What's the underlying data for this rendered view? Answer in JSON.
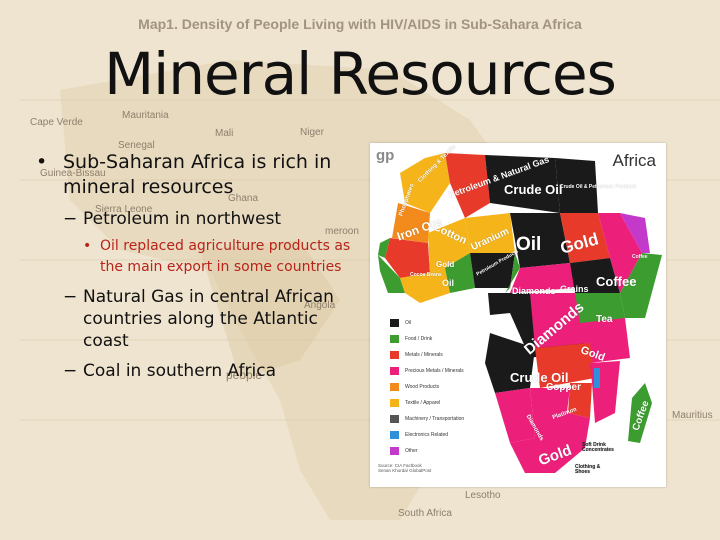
{
  "background": {
    "title": "Map1. Density of People Living with HIV/AIDS in Sub-Sahara Africa",
    "labels": {
      "cape_verde": "Cape Verde",
      "mauritania": "Mauritania",
      "mali": "Mali",
      "niger": "Niger",
      "senegal": "Senegal",
      "guinea_bissau": "Guinea-Bissau",
      "sierra_leone": "Sierra Leone",
      "ghana": "Ghana",
      "cameroon": "meroon",
      "angola": "Angola",
      "people": "people",
      "mauritius": "Mauritius",
      "lesotho": "Lesotho",
      "south_africa": "South Africa"
    }
  },
  "slide": {
    "title": "Mineral Resources",
    "bullet_1": "Sub-Saharan Africa is rich in mineral resources",
    "sub_1": "Petroleum in northwest",
    "subsub_1": "Oil replaced agriculture products as the main export in some countries",
    "sub_2": "Natural Gas in central African countries along the Atlantic coast",
    "sub_3": "Coal in southern Africa"
  },
  "map": {
    "logo": "gp",
    "title": "Africa",
    "regions": {
      "clothing_textile": "Clothing & Textile",
      "petroleum_gas": "Petroleum & Natural Gas",
      "crude_oil_north": "Crude Oil",
      "crude_oil_petroleum": "Crude Oil & Petroleum Products",
      "phosphates": "Phosphates",
      "iron_ore": "Iron Ore",
      "cotton": "Cotton",
      "uranium": "Uranium",
      "oil_large": "Oil",
      "gold_large": "Gold",
      "coffee_small": "Coffee",
      "gold_west": "Gold",
      "petroleum_products": "Petroleum Products",
      "cocoa": "Cocoa Beans",
      "oil_west": "Oil",
      "diamonds_central": "Diamonds",
      "grains": "Grains",
      "coffee_large": "Coffee",
      "tea": "Tea",
      "diamonds_large": "Diamonds",
      "gold_east": "Gold",
      "crude_oil_south": "Crude Oil",
      "copper": "Copper",
      "coffee_madagascar": "Coffee",
      "platinum": "Platinum",
      "diamonds_south": "Diamonds",
      "gold_south": "Gold",
      "soft_drink": "Soft Drink Concentrates",
      "clothing_shoes": "Clothing & Shoes"
    },
    "legend": [
      {
        "label": "Oil",
        "color": "#1a1a1a"
      },
      {
        "label": "Food / Drink",
        "color": "#3c9c2f"
      },
      {
        "label": "Metals / Minerals",
        "color": "#e83a2a"
      },
      {
        "label": "Precious Metals / Minerals",
        "color": "#ec1f7b"
      },
      {
        "label": "Wood Products",
        "color": "#f28a1c"
      },
      {
        "label": "Textile / Apparel",
        "color": "#f4b41a"
      },
      {
        "label": "Machinery / Transportation",
        "color": "#555555"
      },
      {
        "label": "Electronics Related",
        "color": "#2f8fd8"
      },
      {
        "label": "Other",
        "color": "#c339c9"
      }
    ],
    "source": "Source: CIA Factbook\nSenan Khorda/ GlobalPost"
  }
}
